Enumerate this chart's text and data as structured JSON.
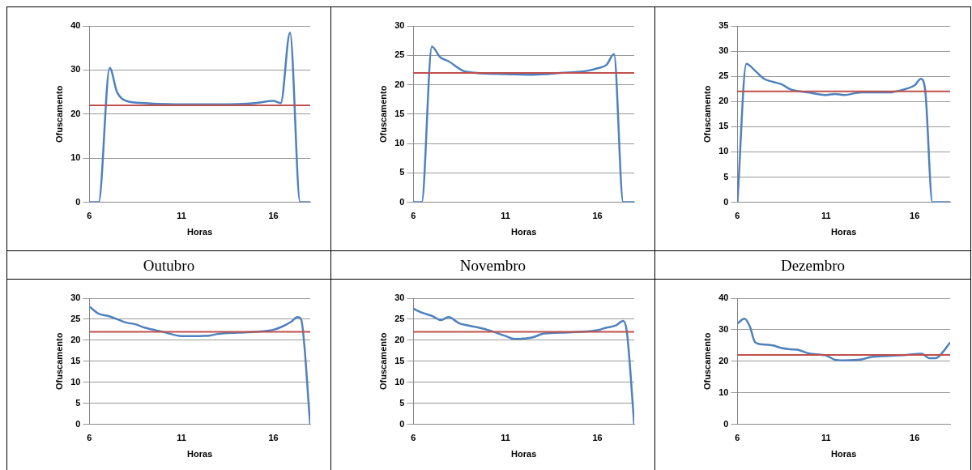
{
  "chart_data": [
    {
      "type": "line",
      "xlabel": "Horas",
      "ylabel": "Ofuscamento",
      "annotations": [
        "Outubro"
      ],
      "xlim": [
        6,
        18
      ],
      "xticks": [
        6,
        11,
        16
      ],
      "ylim": [
        0,
        40
      ],
      "yticks": [
        0,
        10,
        20,
        30,
        40
      ],
      "grid": "y",
      "marker": "none",
      "legend": false,
      "ref_lines": [
        {
          "axis": "y",
          "value": 22,
          "color": "#c0504d"
        }
      ],
      "series": [
        {
          "color": "#4f81bd",
          "x": [
            6,
            6.5,
            7.1,
            7.5,
            8,
            9,
            11,
            13,
            15,
            16,
            16.4,
            16.9,
            17.45,
            18
          ],
          "values": [
            0,
            0,
            30.5,
            25,
            23,
            22.5,
            22.2,
            22.2,
            22.5,
            23,
            22.5,
            38.5,
            0,
            0
          ]
        }
      ]
    },
    {
      "type": "line",
      "xlabel": "Horas",
      "ylabel": "Ofuscamento",
      "annotations": [
        "Novembro"
      ],
      "xlim": [
        6,
        18
      ],
      "xticks": [
        6,
        11,
        16
      ],
      "ylim": [
        0,
        30
      ],
      "yticks": [
        0,
        5,
        10,
        15,
        20,
        25,
        30
      ],
      "grid": "y",
      "marker": "none",
      "legend": false,
      "ref_lines": [
        {
          "axis": "y",
          "value": 22,
          "color": "#c0504d"
        }
      ],
      "series": [
        {
          "color": "#4f81bd",
          "x": [
            6,
            6.45,
            7,
            7.45,
            7.9,
            8.85,
            11,
            12.5,
            14,
            15.5,
            16,
            16.5,
            16.9,
            17.4,
            18
          ],
          "values": [
            0,
            0,
            26.5,
            24.7,
            24,
            22.2,
            21.8,
            21.7,
            22,
            22.4,
            22.8,
            23.4,
            25.2,
            0,
            0
          ]
        }
      ]
    },
    {
      "type": "line",
      "xlabel": "Horas",
      "ylabel": "Ofuscamento",
      "annotations": [
        "Dezembro"
      ],
      "xlim": [
        6,
        18
      ],
      "xticks": [
        6,
        11,
        16
      ],
      "ylim": [
        0,
        35
      ],
      "yticks": [
        0,
        5,
        10,
        15,
        20,
        25,
        30,
        35
      ],
      "grid": "y",
      "marker": "none",
      "legend": false,
      "ref_lines": [
        {
          "axis": "y",
          "value": 22,
          "color": "#c0504d"
        }
      ],
      "series": [
        {
          "color": "#4f81bd",
          "x": [
            6,
            6.5,
            7,
            7.5,
            8,
            8.5,
            9,
            10,
            11,
            11.5,
            12,
            13,
            14.5,
            15.5,
            16,
            16.35,
            16.6,
            17,
            17.5,
            18
          ],
          "values": [
            0,
            27.5,
            26.1,
            24.5,
            23.9,
            23.4,
            22.4,
            21.8,
            21.3,
            21.5,
            21.3,
            21.8,
            21.8,
            22.5,
            23.2,
            24.5,
            22,
            0,
            0,
            0
          ]
        }
      ]
    },
    {
      "type": "line",
      "xlabel": "Horas",
      "ylabel": "Ofuscamento",
      "xlim": [
        6,
        18
      ],
      "xticks": [
        6,
        11,
        16
      ],
      "ylim": [
        0,
        30
      ],
      "yticks": [
        0,
        5,
        10,
        15,
        20,
        25,
        30
      ],
      "grid": "y",
      "marker": "none",
      "legend": false,
      "ref_lines": [
        {
          "axis": "y",
          "value": 22,
          "color": "#c0504d"
        }
      ],
      "series": [
        {
          "color": "#4f81bd",
          "x": [
            6,
            6.5,
            7,
            7.5,
            8,
            8.5,
            9,
            10,
            11,
            12,
            12.5,
            13,
            14,
            15,
            16,
            16.5,
            17,
            17.3,
            17.5,
            18
          ],
          "values": [
            28,
            26.3,
            25.8,
            25,
            24.2,
            23.8,
            23,
            22,
            21,
            21,
            21.1,
            21.5,
            21.8,
            22,
            22.5,
            23.3,
            24.5,
            25.5,
            25,
            0
          ]
        }
      ]
    },
    {
      "type": "line",
      "xlabel": "Horas",
      "ylabel": "Ofuscamento",
      "xlim": [
        6,
        18
      ],
      "xticks": [
        6,
        11,
        16
      ],
      "ylim": [
        0,
        30
      ],
      "yticks": [
        0,
        5,
        10,
        15,
        20,
        25,
        30
      ],
      "grid": "y",
      "marker": "none",
      "legend": false,
      "ref_lines": [
        {
          "axis": "y",
          "value": 22,
          "color": "#c0504d"
        }
      ],
      "series": [
        {
          "color": "#4f81bd",
          "x": [
            6,
            6.5,
            7,
            7.5,
            7.9,
            8.5,
            9,
            10,
            11,
            11.5,
            12,
            12.5,
            13,
            14,
            15,
            16,
            16.5,
            17,
            17.4,
            17.6,
            18
          ],
          "values": [
            27.5,
            26.5,
            25.8,
            24.8,
            25.5,
            24,
            23.5,
            22.5,
            21,
            20.3,
            20.4,
            20.7,
            21.5,
            21.8,
            22,
            22.4,
            23,
            23.5,
            24.6,
            22,
            0
          ]
        }
      ]
    },
    {
      "type": "line",
      "xlabel": "Horas",
      "ylabel": "Ofuscamento",
      "xlim": [
        6,
        18
      ],
      "xticks": [
        6,
        11,
        16
      ],
      "ylim": [
        0,
        40
      ],
      "yticks": [
        0,
        10,
        20,
        30,
        40
      ],
      "grid": "y",
      "marker": "none",
      "legend": false,
      "ref_lines": [
        {
          "axis": "y",
          "value": 22,
          "color": "#c0504d"
        }
      ],
      "series": [
        {
          "color": "#4f81bd",
          "x": [
            6,
            6.4,
            6.7,
            7,
            7.5,
            8,
            8.5,
            9,
            9.5,
            10,
            11,
            11.5,
            12,
            13,
            13.5,
            14.5,
            15.5,
            16.4,
            16.8,
            17.2,
            17.6,
            18
          ],
          "values": [
            32,
            33.5,
            31,
            26,
            25.3,
            25,
            24.2,
            23.8,
            23.5,
            22.5,
            21.8,
            20.5,
            20.3,
            20.6,
            21.3,
            21.7,
            22,
            22.4,
            21,
            21,
            23,
            26
          ]
        }
      ]
    }
  ]
}
